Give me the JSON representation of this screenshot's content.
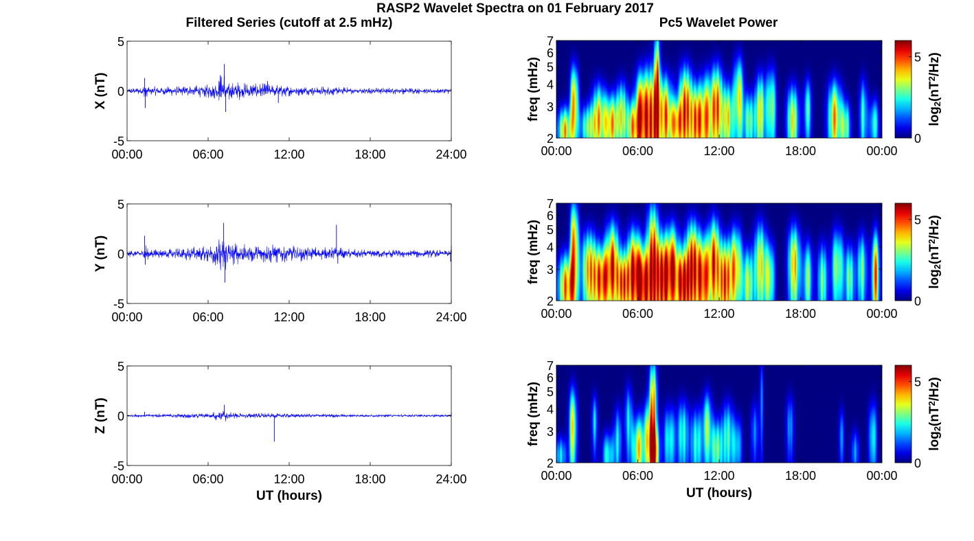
{
  "figure": {
    "suptitle": "RASP2 Wavelet Spectra on 01 February 2017",
    "left_column_title": "Filtered Series (cutoff at 2.5 mHz)",
    "right_column_title": "Pc5 Wavelet Power",
    "xlabel": "UT (hours)"
  },
  "chart_data": [
    {
      "type": "line",
      "panel": "X",
      "ylabel": "X (nT)",
      "ylim": [
        -5,
        5
      ],
      "yticks": [
        "5",
        "0",
        "-5"
      ],
      "xlim": [
        0,
        24
      ],
      "xticks": [
        "00:00",
        "06:00",
        "12:00",
        "18:00",
        "24:00"
      ],
      "line_color": "#0000ff",
      "series": [
        {
          "amplitude_envelope": [
            [
              0,
              0.3
            ],
            [
              1.2,
              0.4
            ],
            [
              1.3,
              1.3
            ],
            [
              1.5,
              0.5
            ],
            [
              3,
              0.5
            ],
            [
              4,
              0.55
            ],
            [
              5,
              0.6
            ],
            [
              6.5,
              0.8
            ],
            [
              7.2,
              2.3
            ],
            [
              7.5,
              1.2
            ],
            [
              9,
              0.8
            ],
            [
              10.5,
              0.8
            ],
            [
              12,
              0.6
            ],
            [
              13,
              0.5
            ],
            [
              15,
              0.5
            ],
            [
              16,
              0.4
            ],
            [
              18,
              0.35
            ],
            [
              21,
              0.35
            ],
            [
              22,
              0.3
            ],
            [
              24,
              0.3
            ]
          ],
          "spikes": [
            [
              1.3,
              1.3
            ],
            [
              1.35,
              -1.7
            ],
            [
              7.2,
              2.7
            ],
            [
              7.3,
              -2.1
            ],
            [
              6.9,
              1.6
            ],
            [
              11.2,
              -1.2
            ],
            [
              10.4,
              1.0
            ]
          ]
        }
      ]
    },
    {
      "type": "line",
      "panel": "Y",
      "ylabel": "Y (nT)",
      "ylim": [
        -5,
        5
      ],
      "yticks": [
        "5",
        "0",
        "-5"
      ],
      "xlim": [
        0,
        24
      ],
      "xticks": [
        "00:00",
        "06:00",
        "12:00",
        "18:00",
        "24:00"
      ],
      "line_color": "#0000ff",
      "series": [
        {
          "amplitude_envelope": [
            [
              0,
              0.35
            ],
            [
              1.2,
              0.4
            ],
            [
              1.3,
              1.3
            ],
            [
              1.6,
              0.5
            ],
            [
              3,
              0.5
            ],
            [
              4.5,
              0.7
            ],
            [
              6,
              0.9
            ],
            [
              7.1,
              2.3
            ],
            [
              7.5,
              1.3
            ],
            [
              9,
              1.0
            ],
            [
              11,
              1.0
            ],
            [
              12.5,
              0.9
            ],
            [
              14,
              0.7
            ],
            [
              15.5,
              0.7
            ],
            [
              16.5,
              0.5
            ],
            [
              18,
              0.45
            ],
            [
              21,
              0.45
            ],
            [
              23,
              0.4
            ],
            [
              24,
              0.4
            ]
          ],
          "spikes": [
            [
              1.3,
              1.8
            ],
            [
              1.35,
              -1.1
            ],
            [
              7.15,
              3.1
            ],
            [
              7.25,
              -2.9
            ],
            [
              15.5,
              2.9
            ],
            [
              15.6,
              -1.0
            ],
            [
              24,
              0.8
            ],
            [
              23.95,
              -0.8
            ]
          ]
        }
      ]
    },
    {
      "type": "line",
      "panel": "Z",
      "ylabel": "Z (nT)",
      "ylim": [
        -5,
        5
      ],
      "yticks": [
        "5",
        "0",
        "-5"
      ],
      "xlim": [
        0,
        24
      ],
      "xticks": [
        "00:00",
        "06:00",
        "12:00",
        "18:00",
        "24:00"
      ],
      "xlabel": "UT (hours)",
      "line_color": "#0000ff",
      "series": [
        {
          "amplitude_envelope": [
            [
              0,
              0.15
            ],
            [
              1.3,
              0.2
            ],
            [
              4,
              0.25
            ],
            [
              6,
              0.3
            ],
            [
              7.2,
              0.7
            ],
            [
              7.6,
              0.35
            ],
            [
              10,
              0.3
            ],
            [
              12,
              0.25
            ],
            [
              15,
              0.2
            ],
            [
              18,
              0.15
            ],
            [
              24,
              0.15
            ]
          ],
          "spikes": [
            [
              7.2,
              1.1
            ],
            [
              7.3,
              -0.4
            ],
            [
              10.9,
              -2.6
            ],
            [
              1.3,
              0.4
            ],
            [
              24,
              0.3
            ]
          ]
        }
      ]
    },
    {
      "type": "heatmap",
      "panel": "X",
      "ylabel": "freq (mHz)",
      "yscale": "log",
      "ylim": [
        2,
        7
      ],
      "yticks": [
        "2",
        "3",
        "4",
        "5",
        "6",
        "7"
      ],
      "xlim": [
        0,
        24
      ],
      "xticks": [
        "00:00",
        "06:00",
        "12:00",
        "18:00",
        "00:00"
      ],
      "colormap": "jet",
      "colorbar": {
        "label_base": "log",
        "label_sub": "2",
        "label_mid": "(nT",
        "label_sup": "2",
        "label_end": "/Hz)",
        "ticks": [
          "0",
          "5"
        ],
        "clim": [
          0,
          6
        ]
      },
      "blobs": [
        [
          0.6,
          2.2,
          0.35,
          0.5,
          5
        ],
        [
          1.3,
          3.2,
          0.2,
          1.2,
          5.5
        ],
        [
          2.3,
          2.3,
          0.4,
          0.5,
          3.5
        ],
        [
          3.1,
          2.6,
          0.35,
          0.9,
          4.5
        ],
        [
          4.0,
          2.4,
          0.35,
          0.7,
          5
        ],
        [
          4.8,
          2.7,
          0.3,
          0.9,
          4
        ],
        [
          5.6,
          2.3,
          0.3,
          0.6,
          4.5
        ],
        [
          6.2,
          2.8,
          0.3,
          1.2,
          5.5
        ],
        [
          6.9,
          2.5,
          0.35,
          1.5,
          6
        ],
        [
          7.4,
          4.0,
          0.15,
          2.5,
          5.5
        ],
        [
          8.0,
          2.7,
          0.35,
          1.1,
          5.5
        ],
        [
          8.8,
          2.4,
          0.3,
          0.6,
          4.5
        ],
        [
          9.5,
          2.9,
          0.35,
          1.3,
          6
        ],
        [
          10.3,
          2.5,
          0.3,
          0.9,
          5
        ],
        [
          11.0,
          2.6,
          0.35,
          1.2,
          5
        ],
        [
          11.8,
          3.0,
          0.3,
          1.3,
          5.5
        ],
        [
          12.6,
          2.6,
          0.3,
          0.9,
          4.5
        ],
        [
          13.4,
          3.4,
          0.25,
          1.4,
          4.5
        ],
        [
          14.2,
          2.5,
          0.3,
          0.7,
          3.5
        ],
        [
          15.0,
          2.8,
          0.25,
          1.1,
          4.5
        ],
        [
          15.8,
          3.0,
          0.25,
          1.2,
          4
        ],
        [
          17.4,
          2.5,
          0.3,
          0.9,
          4.5
        ],
        [
          18.5,
          2.9,
          0.2,
          0.9,
          3
        ],
        [
          20.5,
          2.6,
          0.35,
          1.0,
          5
        ],
        [
          21.3,
          2.3,
          0.25,
          0.6,
          3.5
        ],
        [
          22.6,
          2.7,
          0.2,
          1.0,
          3
        ],
        [
          23.4,
          2.4,
          0.25,
          0.6,
          3
        ]
      ]
    },
    {
      "type": "heatmap",
      "panel": "Y",
      "ylabel": "freq (mHz)",
      "yscale": "log",
      "ylim": [
        2,
        7
      ],
      "yticks": [
        "2",
        "3",
        "4",
        "5",
        "6",
        "7"
      ],
      "xlim": [
        0,
        24
      ],
      "xticks": [
        "00:00",
        "06:00",
        "12:00",
        "18:00",
        "00:00"
      ],
      "colormap": "jet",
      "colorbar": {
        "label_base": "log",
        "label_sub": "2",
        "label_mid": "(nT",
        "label_sup": "2",
        "label_end": "/Hz)",
        "ticks": [
          "0",
          "5"
        ],
        "clim": [
          0,
          6
        ]
      },
      "blobs": [
        [
          0.7,
          2.4,
          0.4,
          0.8,
          5.5
        ],
        [
          1.3,
          4.0,
          0.2,
          2.0,
          6
        ],
        [
          2.4,
          3.0,
          0.4,
          1.2,
          5
        ],
        [
          3.3,
          2.6,
          0.4,
          0.9,
          5.5
        ],
        [
          4.1,
          3.3,
          0.35,
          1.4,
          5.5
        ],
        [
          4.9,
          2.5,
          0.35,
          0.8,
          5.5
        ],
        [
          5.7,
          3.0,
          0.35,
          1.3,
          6
        ],
        [
          6.4,
          2.5,
          0.35,
          1.0,
          6
        ],
        [
          7.1,
          3.4,
          0.3,
          2.2,
          6
        ],
        [
          7.8,
          2.7,
          0.35,
          1.2,
          6
        ],
        [
          8.5,
          3.1,
          0.35,
          1.4,
          5.5
        ],
        [
          9.3,
          2.5,
          0.35,
          0.9,
          6
        ],
        [
          10.0,
          3.2,
          0.35,
          1.5,
          6
        ],
        [
          10.8,
          2.7,
          0.35,
          1.2,
          6
        ],
        [
          11.6,
          3.4,
          0.3,
          1.5,
          5.5
        ],
        [
          12.4,
          2.6,
          0.35,
          1.1,
          6
        ],
        [
          13.2,
          3.1,
          0.3,
          1.3,
          5
        ],
        [
          14.1,
          2.5,
          0.3,
          0.9,
          4
        ],
        [
          15.0,
          3.2,
          0.3,
          1.4,
          4.5
        ],
        [
          15.7,
          2.7,
          0.25,
          1.0,
          4
        ],
        [
          17.5,
          3.2,
          0.3,
          1.3,
          5
        ],
        [
          18.5,
          2.7,
          0.25,
          1.0,
          3.5
        ],
        [
          19.6,
          2.6,
          0.25,
          1.0,
          3.5
        ],
        [
          20.7,
          3.1,
          0.3,
          1.2,
          4
        ],
        [
          21.6,
          2.7,
          0.25,
          0.9,
          3.5
        ],
        [
          22.5,
          3.0,
          0.25,
          1.1,
          3.5
        ],
        [
          23.5,
          2.8,
          0.2,
          1.3,
          5.5
        ]
      ]
    },
    {
      "type": "heatmap",
      "panel": "Z",
      "ylabel": "freq (mHz)",
      "yscale": "log",
      "ylim": [
        2,
        7
      ],
      "yticks": [
        "2",
        "3",
        "4",
        "5",
        "6",
        "7"
      ],
      "xlim": [
        0,
        24
      ],
      "xticks": [
        "00:00",
        "06:00",
        "12:00",
        "18:00",
        "00:00"
      ],
      "xlabel": "UT (hours)",
      "colormap": "jet",
      "colorbar": {
        "label_base": "log",
        "label_sub": "2",
        "label_mid": "(nT",
        "label_sup": "2",
        "label_end": "/Hz)",
        "ticks": [
          "0",
          "5"
        ],
        "clim": [
          0,
          6
        ]
      },
      "blobs": [
        [
          0.3,
          2.2,
          0.3,
          0.4,
          2.5
        ],
        [
          1.2,
          3.2,
          0.2,
          1.3,
          4.5
        ],
        [
          2.8,
          3.4,
          0.15,
          0.9,
          2.5
        ],
        [
          3.8,
          2.2,
          0.3,
          0.5,
          3
        ],
        [
          4.5,
          2.7,
          0.2,
          0.9,
          2.5
        ],
        [
          5.3,
          3.5,
          0.2,
          1.2,
          2.5
        ],
        [
          6.0,
          2.4,
          0.3,
          0.8,
          4.5
        ],
        [
          6.7,
          2.8,
          0.25,
          1.0,
          3.5
        ],
        [
          7.1,
          4.0,
          0.2,
          2.2,
          5.5
        ],
        [
          7.2,
          2.3,
          0.25,
          0.6,
          4.5
        ],
        [
          8.3,
          2.7,
          0.3,
          0.9,
          3
        ],
        [
          9.3,
          2.9,
          0.3,
          1.0,
          3
        ],
        [
          10.3,
          2.6,
          0.3,
          0.9,
          3
        ],
        [
          11.1,
          3.2,
          0.25,
          1.1,
          3.5
        ],
        [
          11.8,
          2.4,
          0.3,
          0.7,
          3.5
        ],
        [
          12.6,
          2.8,
          0.3,
          1.0,
          3
        ],
        [
          13.3,
          2.5,
          0.25,
          0.7,
          2.5
        ],
        [
          14.6,
          3.0,
          0.2,
          0.9,
          1.8
        ],
        [
          15.1,
          4.5,
          0.1,
          2.0,
          1.8
        ],
        [
          17.2,
          3.2,
          0.2,
          1.0,
          2
        ],
        [
          21.0,
          2.8,
          0.15,
          0.8,
          1.8
        ],
        [
          22.0,
          2.3,
          0.2,
          0.5,
          2
        ],
        [
          23.3,
          2.8,
          0.2,
          1.0,
          3
        ]
      ]
    }
  ]
}
